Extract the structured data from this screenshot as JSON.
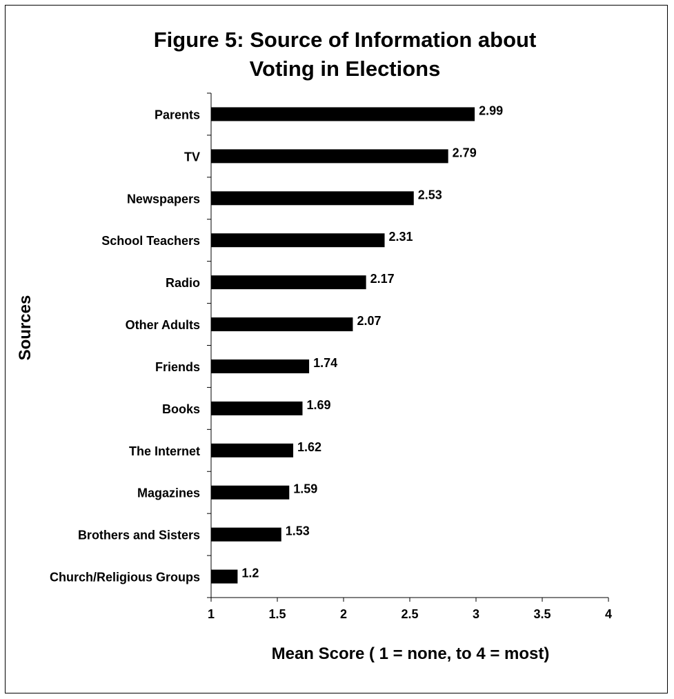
{
  "chart_data": {
    "type": "bar",
    "orientation": "horizontal",
    "title_lines": [
      "Figure 5: Source of Information about",
      "Voting in Elections"
    ],
    "xlabel": "Mean Score ( 1 = none, to 4 = most)",
    "ylabel": "Sources",
    "xlim": [
      1,
      4
    ],
    "xticks": [
      1,
      1.5,
      2,
      2.5,
      3,
      3.5,
      4
    ],
    "xtick_labels": [
      "1",
      "1.5",
      "2",
      "2.5",
      "3",
      "3.5",
      "4"
    ],
    "categories": [
      "Parents",
      "TV",
      "Newspapers",
      "School Teachers",
      "Radio",
      "Other Adults",
      "Friends",
      "Books",
      "The Internet",
      "Magazines",
      "Brothers and Sisters",
      "Church/Religious Groups"
    ],
    "values": [
      2.99,
      2.79,
      2.53,
      2.31,
      2.17,
      2.07,
      1.74,
      1.69,
      1.62,
      1.59,
      1.53,
      1.2
    ],
    "value_labels": [
      "2.99",
      "2.79",
      "2.53",
      "2.31",
      "2.17",
      "2.07",
      "1.74",
      "1.69",
      "1.62",
      "1.59",
      "1.53",
      "1.2"
    ],
    "bar_color": "#000000",
    "grid": false,
    "legend": "none"
  }
}
